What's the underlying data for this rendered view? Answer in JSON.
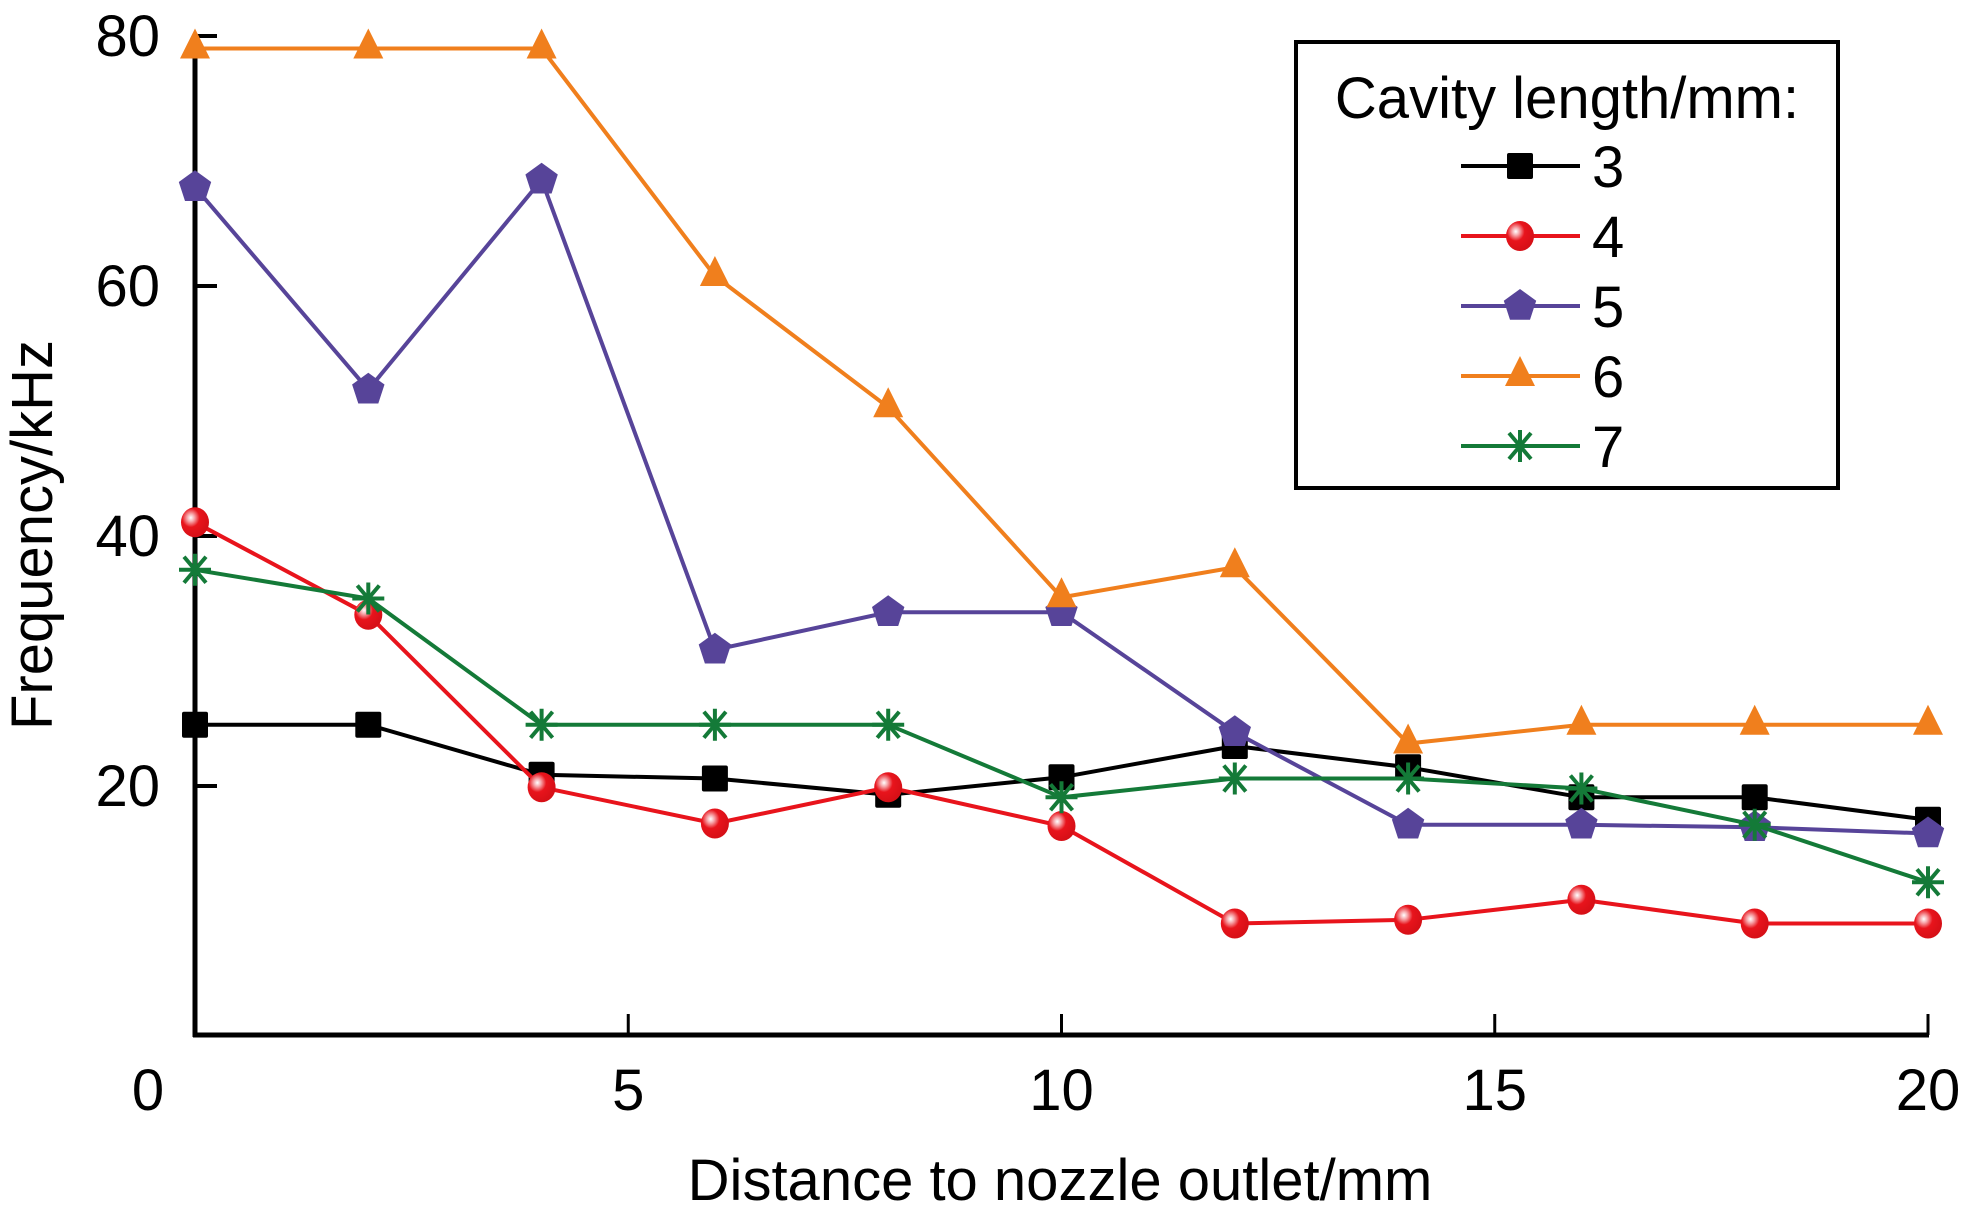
{
  "chart_data": {
    "type": "line",
    "title": "",
    "xlabel": "Distance to nozzle outlet/mm",
    "ylabel": "Frequency/kHz",
    "xlim": [
      0,
      20
    ],
    "ylim": [
      0,
      80
    ],
    "xticks": [
      0,
      5,
      10,
      15,
      20
    ],
    "yticks": [
      20,
      40,
      60,
      80
    ],
    "xtick_labels": [
      "0",
      "5",
      "10",
      "15",
      "20"
    ],
    "ytick_labels": [
      "20",
      "40",
      "60",
      "80"
    ],
    "grid": false,
    "legend": {
      "title": "Cavity length/mm:",
      "placement": "top-right",
      "boxed": true
    },
    "x": [
      0,
      2,
      4,
      6,
      8,
      10,
      12,
      14,
      16,
      18,
      20
    ],
    "series": [
      {
        "name": "3",
        "color": "#000000",
        "marker": "square",
        "values": [
          24.9,
          24.9,
          20.9,
          20.6,
          19.3,
          20.7,
          23.2,
          21.5,
          19.1,
          19.1,
          17.3
        ]
      },
      {
        "name": "4",
        "color": "#e8141c",
        "marker": "sphere",
        "values": [
          41.1,
          33.7,
          19.9,
          17.0,
          19.9,
          16.8,
          9.0,
          9.3,
          10.9,
          9.0,
          9.0
        ]
      },
      {
        "name": "5",
        "color": "#574499",
        "marker": "pentagon",
        "values": [
          67.9,
          51.7,
          68.5,
          30.9,
          33.9,
          33.9,
          24.3,
          16.9,
          16.9,
          16.7,
          16.2
        ]
      },
      {
        "name": "6",
        "color": "#f07f1d",
        "marker": "triangle",
        "values": [
          79.0,
          79.0,
          79.0,
          60.8,
          50.3,
          35.1,
          37.5,
          23.4,
          24.9,
          24.9,
          24.9
        ]
      },
      {
        "name": "7",
        "color": "#147a38",
        "marker": "asterisk",
        "values": [
          37.3,
          35.0,
          24.9,
          24.9,
          24.9,
          19.1,
          20.6,
          20.6,
          19.8,
          16.9,
          12.3
        ]
      }
    ]
  }
}
